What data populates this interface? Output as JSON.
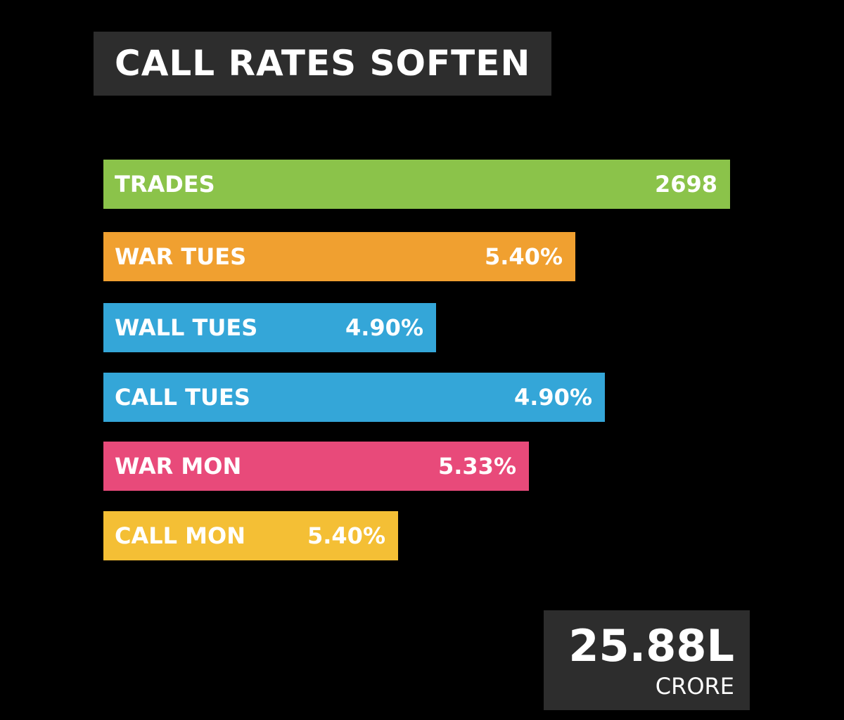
{
  "header": {
    "title": "CALL RATES SOFTEN"
  },
  "items": [
    {
      "label": "TRADES",
      "value": "2698"
    },
    {
      "label": "WAR TUES",
      "value": "5.40%"
    },
    {
      "label": "WALL TUES",
      "value": "4.90%"
    },
    {
      "label": "CALL TUES",
      "value": "4.90%"
    },
    {
      "label": "WAR MON",
      "value": "5.33%"
    },
    {
      "label": "CALL MON",
      "value": "5.40%"
    }
  ],
  "total": {
    "value": "25.88L",
    "unit": "CRORE"
  }
}
